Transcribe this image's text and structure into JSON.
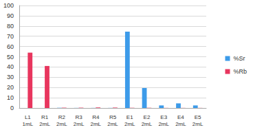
{
  "chart_data": {
    "type": "bar",
    "categories": [
      "L1\n1mL",
      "R1\n2mL",
      "R2\n2mL",
      "R3\n2mL",
      "R4\n2mL",
      "R5\n2mL",
      "E1\n2mL",
      "E2\n2mL",
      "E3\n2mL",
      "E4\n2mL",
      "E5\n2mL"
    ],
    "series": [
      {
        "name": "%Sr",
        "color": "#3d9be9",
        "values": [
          0,
          0,
          0.2,
          0.1,
          0.1,
          0.1,
          74.5,
          19.5,
          2.5,
          4.5,
          2.5
        ]
      },
      {
        "name": "%Rb",
        "color": "#e8365e",
        "values": [
          54,
          41,
          0.3,
          0.3,
          0.5,
          0.4,
          0.2,
          0.2,
          0.1,
          0.1,
          0.1
        ]
      }
    ],
    "ylim": [
      0,
      100
    ],
    "yticks": [
      0,
      10,
      20,
      30,
      40,
      50,
      60,
      70,
      80,
      90,
      100
    ],
    "grid": true,
    "legend": "right"
  }
}
